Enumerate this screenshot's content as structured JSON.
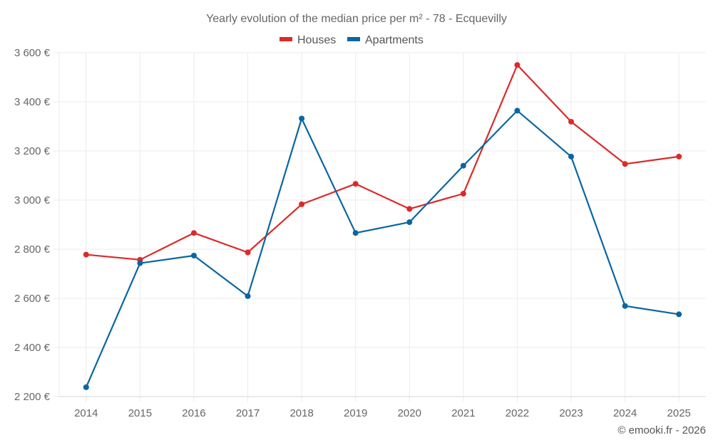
{
  "chart_data": {
    "type": "line",
    "title": "Yearly evolution of the median price per m² - 78 - Ecquevilly",
    "xlabel": "",
    "ylabel": "",
    "categories": [
      "2014",
      "2015",
      "2016",
      "2017",
      "2018",
      "2019",
      "2020",
      "2021",
      "2022",
      "2023",
      "2024",
      "2025"
    ],
    "series": [
      {
        "name": "Houses",
        "color": "#dc2a2a",
        "values": [
          2778,
          2757,
          2866,
          2787,
          2983,
          3066,
          2964,
          3026,
          3550,
          3319,
          3147,
          3177
        ]
      },
      {
        "name": "Apartments",
        "color": "#0a66a0",
        "values": [
          2238,
          2743,
          2774,
          2609,
          3332,
          2866,
          2910,
          3140,
          3364,
          3177,
          2569,
          2535
        ]
      }
    ],
    "ylim": [
      2200,
      3600
    ],
    "yticks": [
      2200,
      2400,
      2600,
      2800,
      3000,
      3200,
      3400,
      3600
    ],
    "ytick_labels": [
      "2 200 €",
      "2 400 €",
      "2 600 €",
      "2 800 €",
      "3 000 €",
      "3 200 €",
      "3 400 €",
      "3 600 €"
    ],
    "grid": true,
    "legend_position": "top-center",
    "credit": "© emooki.fr - 2026"
  }
}
